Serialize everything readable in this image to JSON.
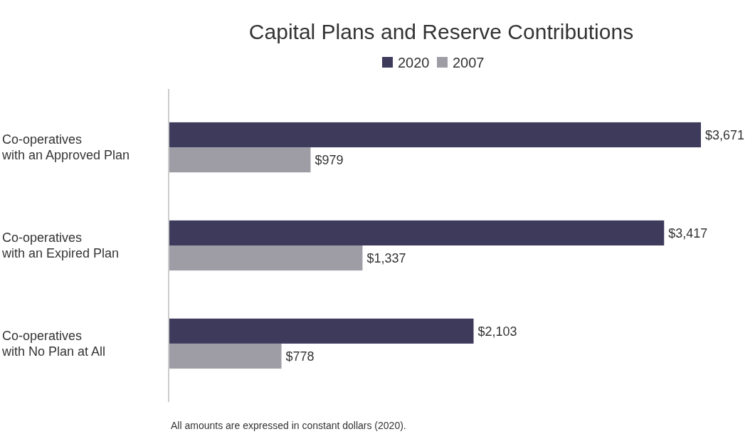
{
  "chart_data": {
    "type": "bar",
    "orientation": "horizontal",
    "title": "Capital Plans and Reserve Contributions",
    "categories": [
      "Co-operatives with an Approved Plan",
      "Co-operatives with an Expired Plan",
      "Co-operatives with No Plan at All"
    ],
    "series": [
      {
        "name": "2020",
        "color": "#3d3a5c",
        "values": [
          3671,
          3417,
          2103
        ],
        "value_labels": [
          "$3,671",
          "$3,417",
          "$2,103"
        ]
      },
      {
        "name": "2007",
        "color": "#9e9da6",
        "values": [
          979,
          1337,
          778
        ],
        "value_labels": [
          "$979",
          "$1,337",
          "$778"
        ]
      }
    ],
    "xlim": [
      0,
      3671
    ],
    "tick_labels": "y",
    "legend": "top",
    "annotations": [
      "All amounts are expressed in constant dollars (2020)."
    ]
  }
}
